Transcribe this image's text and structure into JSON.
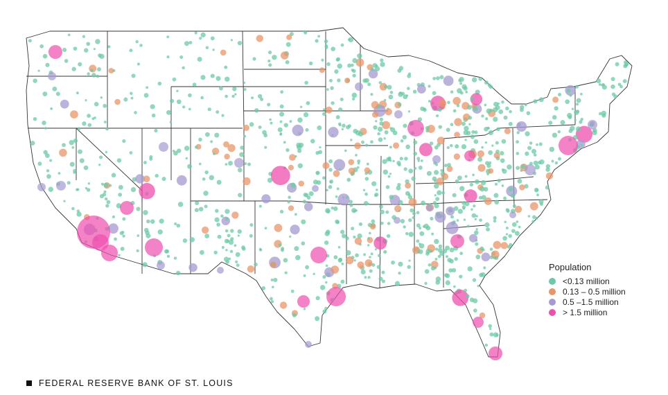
{
  "legend": {
    "title": "Population",
    "items": [
      {
        "label": "<0.13 million",
        "color": "#6cc9a5"
      },
      {
        "label": "0.13 – 0.5 million",
        "color": "#e8956a"
      },
      {
        "label": "0.5 –1.5 million",
        "color": "#a59ad2"
      },
      {
        "label": "> 1.5 million",
        "color": "#ee4fae"
      }
    ]
  },
  "footer": {
    "source": "FEDERAL RESERVE BANK OF ST. LOUIS"
  }
}
